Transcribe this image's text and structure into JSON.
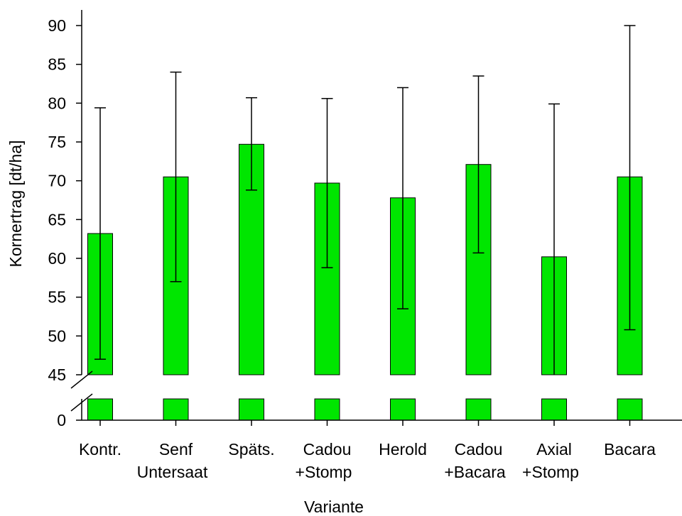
{
  "chart_data": {
    "type": "bar",
    "xlabel": "Variante",
    "ylabel": "Kornertrag [dt/ha]",
    "ylim": [
      45,
      90
    ],
    "y_break": {
      "below": 45,
      "baseline": 0
    },
    "y_ticks": [
      "0",
      "45",
      "50",
      "55",
      "60",
      "65",
      "70",
      "75",
      "80",
      "85",
      "90"
    ],
    "categories": [
      [
        "Kontr."
      ],
      [
        "Senf",
        "Untersaat"
      ],
      [
        "Späts."
      ],
      [
        "Cadou",
        "+Stomp"
      ],
      [
        "Herold"
      ],
      [
        "Cadou",
        "+Bacara"
      ],
      [
        "Axial",
        "+Stomp"
      ],
      [
        "Bacara"
      ]
    ],
    "values": [
      63.2,
      70.5,
      74.7,
      69.7,
      67.8,
      72.1,
      60.2,
      70.5
    ],
    "error_high": [
      79.4,
      84.0,
      80.7,
      80.6,
      82.0,
      83.5,
      79.9,
      90.0
    ],
    "error_low": [
      47.0,
      57.0,
      68.8,
      58.8,
      53.5,
      60.7,
      45.0,
      50.8
    ],
    "bar_color": "#00e600",
    "grid": false,
    "legend": "none"
  }
}
